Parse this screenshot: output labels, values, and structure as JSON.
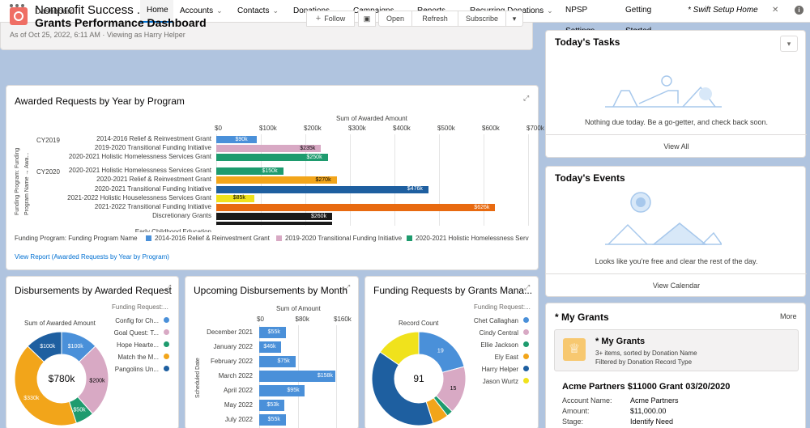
{
  "app": {
    "name": "Nonprofit Success ..."
  },
  "nav": {
    "items": [
      {
        "label": "Home",
        "active": true,
        "chevron": false
      },
      {
        "label": "Accounts",
        "chevron": true
      },
      {
        "label": "Contacts",
        "chevron": true
      },
      {
        "label": "Donations",
        "chevron": true
      },
      {
        "label": "Campaigns",
        "chevron": true
      },
      {
        "label": "Reports",
        "chevron": true
      },
      {
        "label": "Recurring Donations",
        "chevron": true
      },
      {
        "label": "NPSP Settings",
        "chevron": false
      },
      {
        "label": "Getting Started",
        "chevron": false
      },
      {
        "label": "* Swift Setup Home",
        "chevron": false,
        "italic": true
      }
    ],
    "close": "✕"
  },
  "dashboard": {
    "kicker": "Dashboard",
    "title": "Grants Performance Dashboard",
    "subtitle": "As of Oct 25, 2022, 6:11 AM · Viewing as Harry Helper",
    "buttons": {
      "follow": "Follow",
      "open": "Open",
      "refresh": "Refresh",
      "subscribe": "Subscribe"
    }
  },
  "awarded": {
    "title": "Awarded Requests by Year by Program",
    "x_title": "Sum of Awarded Amount",
    "y_title_1": "Funding Program: Funding",
    "y_title_2": "Program Name → Awa...",
    "groups": [
      "CY2019",
      "CY2020"
    ],
    "legend_title": "Funding Program: Funding Program Name",
    "link": "View Report (Awarded Requests by Year by Program)",
    "cut_label": "Early Childhood Education"
  },
  "chart_data": [
    {
      "type": "bar",
      "orientation": "horizontal",
      "title": "Awarded Requests by Year by Program",
      "xlabel": "Sum of Awarded Amount",
      "xlim": [
        0,
        700
      ],
      "xticks": [
        "$0",
        "$100k",
        "$200k",
        "$300k",
        "$400k",
        "$500k",
        "$600k",
        "$700k"
      ],
      "bars": [
        {
          "group": "CY2019",
          "label": "2014-2016 Relief & Reinvestment Grant",
          "value": 90,
          "display": "$90k",
          "color": "#4a90d9"
        },
        {
          "group": "CY2019",
          "label": "2019-2020 Transitional Funding Initiative",
          "value": 235,
          "display": "$235k",
          "color": "#d8a9c4"
        },
        {
          "group": "CY2019",
          "label": "2020-2021 Holistic Homelessness Services Grant",
          "value": 250,
          "display": "$250k",
          "color": "#1e9b6e"
        },
        {
          "group": "CY2020",
          "label": "2020-2021 Holistic Homelessness Services Grant",
          "value": 150,
          "display": "$150k",
          "color": "#1e9b6e"
        },
        {
          "group": "CY2020",
          "label": "2020-2021 Relief & Reinvestment Grant",
          "value": 270,
          "display": "$270k",
          "color": "#f2a51a"
        },
        {
          "group": "CY2020",
          "label": "2020-2021 Transitional Funding Initiative",
          "value": 476,
          "display": "$476k",
          "color": "#1e5fa0"
        },
        {
          "group": "CY2020",
          "label": "2021-2022 Holistic Houselessness Services Grant",
          "value": 85,
          "display": "$85k",
          "color": "#f0e21c"
        },
        {
          "group": "CY2020",
          "label": "2021-2022 Transitional Funding Initiative",
          "value": 626,
          "display": "$626k",
          "color": "#e86a10"
        },
        {
          "group": "CY2020",
          "label": "Discretionary Grants",
          "value": 260,
          "display": "$260k",
          "color": "#1a1a1a"
        },
        {
          "group": "CY2020",
          "label": "",
          "value": 260,
          "display": "",
          "color": "#1a1a1a"
        }
      ],
      "legend": [
        {
          "name": "2014-2016 Relief & Reinvestment Grant",
          "color": "#4a90d9"
        },
        {
          "name": "2019-2020 Transitional Funding Initiative",
          "color": "#d8a9c4"
        },
        {
          "name": "2020-2021 Holistic Homelessness Serv",
          "color": "#1e9b6e"
        }
      ]
    },
    {
      "type": "pie",
      "title": "Disbursements by Awarded Request",
      "subtitle": "Sum of Awarded Amount",
      "center_label": "$780k",
      "legend_title": "Funding Request:...",
      "slices": [
        {
          "name": "Config for Ch...",
          "value": 100,
          "display": "$100k",
          "color": "#4a90d9"
        },
        {
          "name": "Goal Quest: T...",
          "value": 200,
          "display": "$200k",
          "color": "#d8a9c4"
        },
        {
          "name": "Hope Hearte...",
          "value": 50,
          "display": "$50k",
          "color": "#1e9b6e"
        },
        {
          "name": "Match the M...",
          "value": 330,
          "display": "$330k",
          "color": "#f2a51a"
        },
        {
          "name": "Pangolins Un...",
          "value": 100,
          "display": "$100k",
          "color": "#1e5fa0"
        }
      ]
    },
    {
      "type": "bar",
      "orientation": "horizontal",
      "title": "Upcoming Disbursements by Month",
      "xlabel": "Sum of Amount",
      "ylabel": "Scheduled Date",
      "xlim": [
        0,
        160
      ],
      "xticks": [
        "$0",
        "$80k",
        "$160k"
      ],
      "bars": [
        {
          "label": "December 2021",
          "value": 55,
          "display": "$55k"
        },
        {
          "label": "January 2022",
          "value": 46,
          "display": "$46k"
        },
        {
          "label": "February 2022",
          "value": 75,
          "display": "$75k"
        },
        {
          "label": "March 2022",
          "value": 158,
          "display": "$158k"
        },
        {
          "label": "April 2022",
          "value": 95,
          "display": "$95k"
        },
        {
          "label": "May 2022",
          "value": 53,
          "display": "$53k"
        },
        {
          "label": "July 2022",
          "value": 55,
          "display": "$55k"
        }
      ]
    },
    {
      "type": "pie",
      "title": "Funding Requests by Grants Mana...",
      "subtitle": "Record Count",
      "center_label": "91",
      "legend_title": "Funding Request:...",
      "slices": [
        {
          "name": "Chet Callaghan",
          "value": 19,
          "display": "19",
          "color": "#4a90d9"
        },
        {
          "name": "Cindy Central",
          "value": 15,
          "display": "15",
          "color": "#d8a9c4"
        },
        {
          "name": "Ellie Jackson",
          "value": 2,
          "display": "",
          "color": "#1e9b6e"
        },
        {
          "name": "Ely East",
          "value": 5,
          "display": "",
          "color": "#f2a51a"
        },
        {
          "name": "Harry Helper",
          "value": 36,
          "display": "",
          "color": "#1e5fa0"
        },
        {
          "name": "Jason Wurtz",
          "value": 14,
          "display": "",
          "color": "#f0e21c"
        }
      ]
    }
  ],
  "tasks": {
    "title": "Today's Tasks",
    "message": "Nothing due today. Be a go-getter, and check back soon.",
    "link": "View All"
  },
  "events": {
    "title": "Today's Events",
    "message": "Looks like you're free and clear the rest of the day.",
    "link": "View Calendar"
  },
  "grants": {
    "title": "* My Grants",
    "more": "More",
    "list_title": "* My Grants",
    "list_meta_1": "3+ items, sorted by Donation Name",
    "list_meta_2": "Filtered by Donation Record Type",
    "record_title": "Acme Partners $11000 Grant 03/20/2020",
    "fields": [
      {
        "label": "Account Name:",
        "value": "Acme Partners"
      },
      {
        "label": "Amount:",
        "value": "$11,000.00"
      },
      {
        "label": "Stage:",
        "value": "Identify Need"
      }
    ]
  }
}
